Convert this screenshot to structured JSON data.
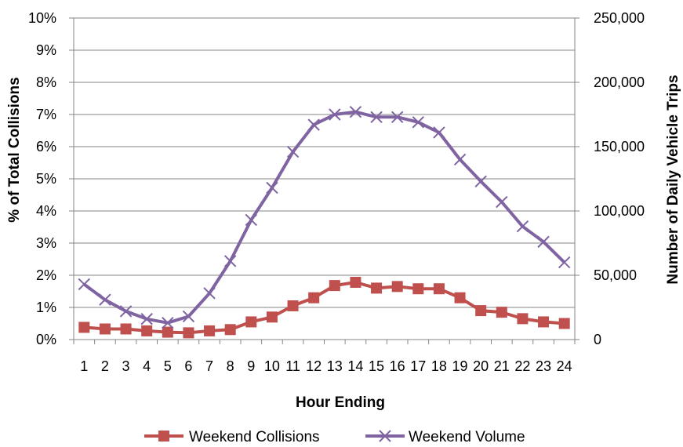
{
  "chart_data": {
    "type": "line",
    "title": "",
    "xlabel": "Hour Ending",
    "ylabel": "% of Total Collisions",
    "y2label": "Number of Daily Vehicle Trips",
    "categories": [
      "1",
      "2",
      "3",
      "4",
      "5",
      "6",
      "7",
      "8",
      "9",
      "10",
      "11",
      "12",
      "13",
      "14",
      "15",
      "16",
      "17",
      "18",
      "19",
      "20",
      "21",
      "22",
      "23",
      "24"
    ],
    "ylim": [
      0,
      10
    ],
    "y_ticks": [
      "0%",
      "1%",
      "2%",
      "3%",
      "4%",
      "5%",
      "6%",
      "7%",
      "8%",
      "9%",
      "10%"
    ],
    "y2lim": [
      0,
      250000
    ],
    "y2_ticks": [
      "0",
      "50,000",
      "100,000",
      "150,000",
      "200,000",
      "250,000"
    ],
    "grid": "horizontal",
    "legend_position": "bottom",
    "series": [
      {
        "name": "Weekend Collisions",
        "axis": "left",
        "unit": "%",
        "color": "#c0504d",
        "marker": "square",
        "values": [
          0.38,
          0.33,
          0.33,
          0.27,
          0.23,
          0.21,
          0.27,
          0.31,
          0.55,
          0.7,
          1.05,
          1.3,
          1.68,
          1.78,
          1.6,
          1.65,
          1.58,
          1.58,
          1.3,
          0.9,
          0.85,
          0.65,
          0.55,
          0.5
        ]
      },
      {
        "name": "Weekend Volume",
        "axis": "right",
        "color": "#8064a2",
        "marker": "x",
        "values": [
          43000,
          31000,
          22000,
          16000,
          13000,
          18000,
          36000,
          61000,
          93000,
          118000,
          146000,
          167000,
          175000,
          177000,
          173000,
          173000,
          169000,
          161000,
          140000,
          123000,
          107000,
          88000,
          76000,
          60000
        ]
      }
    ]
  }
}
